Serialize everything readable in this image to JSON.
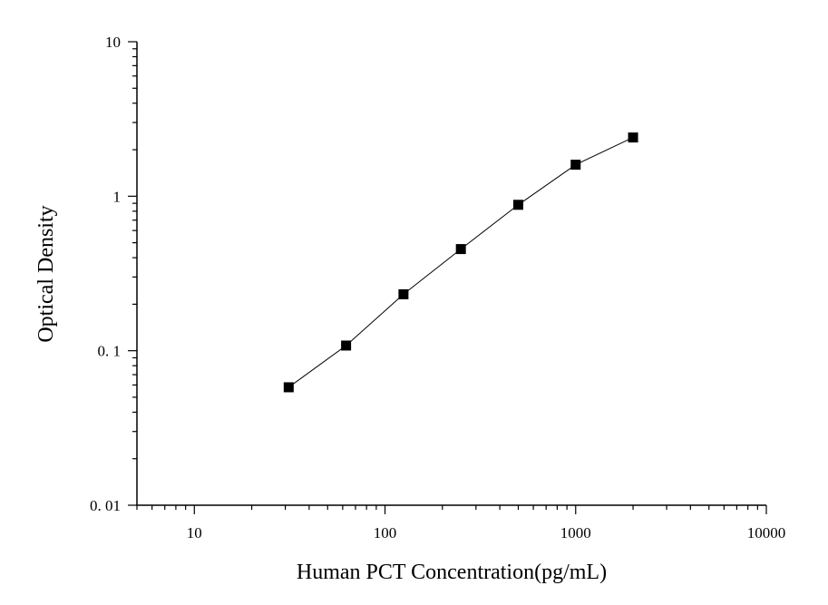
{
  "chart_data": {
    "type": "scatter",
    "xlabel": "Human PCT Concentration(pg/mL)",
    "ylabel": "Optical Density",
    "x_scale": "log",
    "y_scale": "log",
    "xlim": [
      5,
      10000
    ],
    "ylim": [
      0.01,
      10
    ],
    "x_ticks": [
      {
        "value": 10,
        "label": "10"
      },
      {
        "value": 100,
        "label": "100"
      },
      {
        "value": 1000,
        "label": "1000"
      },
      {
        "value": 10000,
        "label": "10000"
      }
    ],
    "y_ticks": [
      {
        "value": 0.01,
        "label": "0. 01"
      },
      {
        "value": 0.1,
        "label": "0. 1"
      },
      {
        "value": 1,
        "label": "1"
      },
      {
        "value": 10,
        "label": "10"
      }
    ],
    "grid": false,
    "legend": "none",
    "series": [
      {
        "marker": "square",
        "line": true,
        "color": "#000000",
        "points": [
          {
            "x": 31.25,
            "y": 0.058
          },
          {
            "x": 62.5,
            "y": 0.108
          },
          {
            "x": 125,
            "y": 0.232
          },
          {
            "x": 250,
            "y": 0.455
          },
          {
            "x": 500,
            "y": 0.88
          },
          {
            "x": 1000,
            "y": 1.6
          },
          {
            "x": 2000,
            "y": 2.4
          }
        ]
      }
    ]
  }
}
